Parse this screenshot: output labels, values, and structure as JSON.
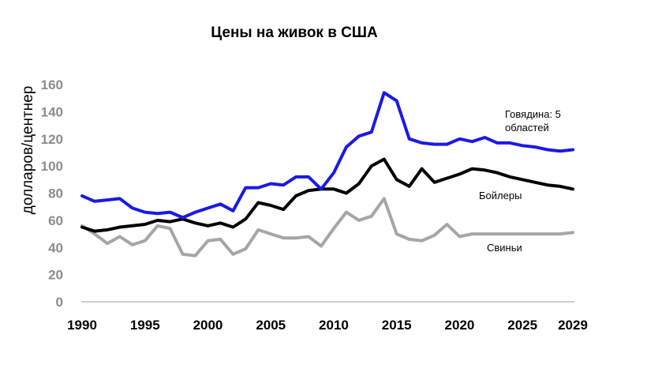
{
  "chart_data": {
    "type": "line",
    "title": "Цены на живок в США",
    "xlabel": "",
    "ylabel": "долларов/центнер",
    "ylim": [
      0,
      160
    ],
    "xlim": [
      1990,
      2029
    ],
    "grid": false,
    "yticks": [
      "0",
      "20",
      "40",
      "60",
      "80",
      "100",
      "120",
      "140",
      "160"
    ],
    "xticks": [
      "1990",
      "1995",
      "2000",
      "2005",
      "2010",
      "2015",
      "2020",
      "2025",
      "2029"
    ],
    "x": [
      1990,
      1991,
      1992,
      1993,
      1994,
      1995,
      1996,
      1997,
      1998,
      1999,
      2000,
      2001,
      2002,
      2003,
      2004,
      2005,
      2006,
      2007,
      2008,
      2009,
      2010,
      2011,
      2012,
      2013,
      2014,
      2015,
      2016,
      2017,
      2018,
      2019,
      2020,
      2021,
      2022,
      2023,
      2024,
      2025,
      2026,
      2027,
      2028,
      2029
    ],
    "series": [
      {
        "name": "Говядина: 5 областей",
        "label_lines": [
          "Говядина: 5",
          "областей"
        ],
        "color": "#1a1ae6",
        "values": [
          78,
          74,
          75,
          76,
          69,
          66,
          65,
          66,
          62,
          66,
          69,
          72,
          67,
          84,
          84,
          87,
          86,
          92,
          92,
          83,
          95,
          114,
          122,
          125,
          154,
          148,
          120,
          117,
          116,
          116,
          120,
          118,
          121,
          117,
          117,
          115,
          114,
          112,
          111,
          112
        ]
      },
      {
        "name": "Бойлеры",
        "label_lines": [
          "Бойлеры"
        ],
        "color": "#000000",
        "values": [
          55,
          52,
          53,
          55,
          56,
          57,
          60,
          59,
          61,
          58,
          56,
          58,
          55,
          61,
          73,
          71,
          68,
          78,
          82,
          83,
          83,
          80,
          87,
          100,
          105,
          90,
          85,
          98,
          88,
          91,
          94,
          98,
          97,
          95,
          92,
          90,
          88,
          86,
          85,
          83
        ]
      },
      {
        "name": "Свиньи",
        "label_lines": [
          "Свиньи"
        ],
        "color": "#a6a6a6",
        "values": [
          56,
          50,
          43,
          48,
          42,
          45,
          56,
          54,
          35,
          34,
          45,
          46,
          35,
          39,
          53,
          50,
          47,
          47,
          48,
          41,
          54,
          66,
          60,
          63,
          76,
          50,
          46,
          45,
          49,
          57,
          48,
          50,
          50,
          50,
          50,
          50,
          50,
          50,
          50,
          51
        ]
      }
    ]
  }
}
